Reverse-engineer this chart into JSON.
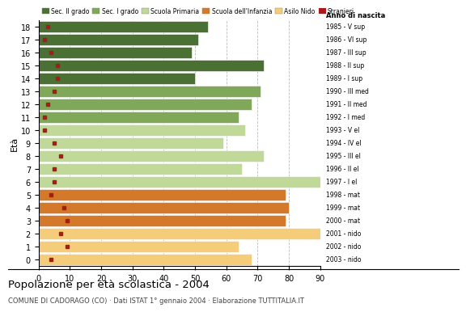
{
  "ages": [
    18,
    17,
    16,
    15,
    14,
    13,
    12,
    11,
    10,
    9,
    8,
    7,
    6,
    5,
    4,
    3,
    2,
    1,
    0
  ],
  "anni_nascita": [
    "1985 - V sup",
    "1986 - VI sup",
    "1987 - III sup",
    "1988 - II sup",
    "1989 - I sup",
    "1990 - III med",
    "1991 - II med",
    "1992 - I med",
    "1993 - V el",
    "1994 - IV el",
    "1995 - III el",
    "1996 - II el",
    "1997 - I el",
    "1998 - mat",
    "1999 - mat",
    "2000 - mat",
    "2001 - nido",
    "2002 - nido",
    "2003 - nido"
  ],
  "values": [
    54,
    51,
    49,
    72,
    50,
    71,
    68,
    64,
    66,
    59,
    72,
    65,
    90,
    79,
    80,
    79,
    90,
    64,
    68
  ],
  "stranieri": [
    3,
    2,
    4,
    6,
    6,
    5,
    3,
    2,
    2,
    5,
    7,
    5,
    5,
    4,
    8,
    9,
    7,
    9,
    4
  ],
  "categories": [
    "Sec. II grado",
    "Sec. I grado",
    "Scuola Primaria",
    "Scuola dell'Infanzia",
    "Asilo Nido"
  ],
  "bar_colors": [
    "#4a7034",
    "#7fa858",
    "#c0d898",
    "#d4782a",
    "#f5cc7a"
  ],
  "stranieri_color": "#aa1a1a",
  "background_color": "#ffffff",
  "title": "Popolazione per età scolastica - 2004",
  "subtitle": "COMUNE DI CADORAGO (CO) · Dati ISTAT 1° gennaio 2004 · Elaborazione TUTTITALIA.IT",
  "ylabel": "Età",
  "xlim": [
    0,
    90
  ],
  "xticks": [
    0,
    10,
    20,
    30,
    40,
    50,
    60,
    70,
    80,
    90
  ],
  "grid_color": "#bbbbbb",
  "age_school": [
    [
      18,
      17,
      16,
      15,
      14
    ],
    [
      13,
      12,
      11
    ],
    [
      10,
      9,
      8,
      7,
      6
    ],
    [
      5,
      4,
      3
    ],
    [
      2,
      1,
      0
    ]
  ],
  "anno_nascita_label": "Anno di nascita"
}
